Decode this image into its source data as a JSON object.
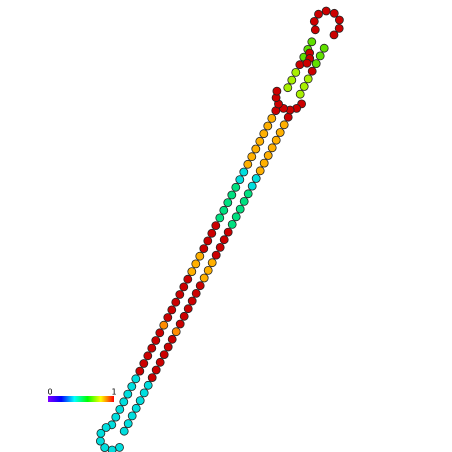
{
  "color_scale": {
    "min": 0,
    "max": 1
  }
}
